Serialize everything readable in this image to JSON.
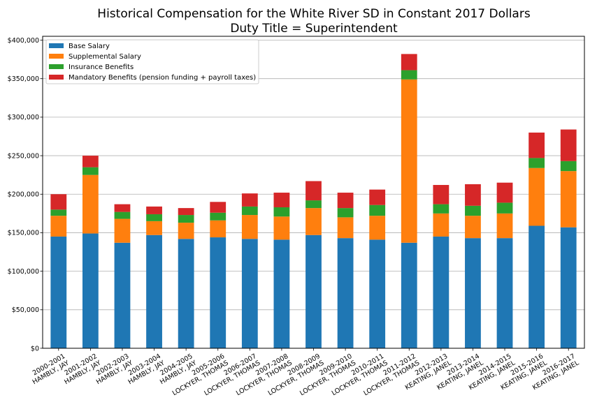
{
  "chart_data": {
    "type": "bar",
    "stacked": true,
    "title": "Historical Compensation for the White River SD in Constant 2017 Dollars",
    "subtitle": "Duty Title = Superintendent",
    "xlabel": "",
    "ylabel": "",
    "ylim": [
      0,
      405000
    ],
    "grid": "y",
    "legend_position": "top-left",
    "y_ticks": [
      {
        "value": 0,
        "label": "$0"
      },
      {
        "value": 50000,
        "label": "$50,000"
      },
      {
        "value": 100000,
        "label": "$100,000"
      },
      {
        "value": 150000,
        "label": "$150,000"
      },
      {
        "value": 200000,
        "label": "$200,000"
      },
      {
        "value": 250000,
        "label": "$250,000"
      },
      {
        "value": 300000,
        "label": "$300,000"
      },
      {
        "value": 350000,
        "label": "$350,000"
      },
      {
        "value": 400000,
        "label": "$400,000"
      }
    ],
    "categories": [
      {
        "year": "2000-2001",
        "name": "HAMBLY, JAY"
      },
      {
        "year": "2001-2002",
        "name": "HAMBLY, JAY"
      },
      {
        "year": "2002-2003",
        "name": "HAMBLY, JAY"
      },
      {
        "year": "2003-2004",
        "name": "HAMBLY, JAY"
      },
      {
        "year": "2004-2005",
        "name": "HAMBLY, JAY"
      },
      {
        "year": "2005-2006",
        "name": "LOCKYER, THOMAS"
      },
      {
        "year": "2006-2007",
        "name": "LOCKYER, THOMAS"
      },
      {
        "year": "2007-2008",
        "name": "LOCKYER, THOMAS"
      },
      {
        "year": "2008-2009",
        "name": "LOCKYER, THOMAS"
      },
      {
        "year": "2009-2010",
        "name": "LOCKYER, THOMAS"
      },
      {
        "year": "2010-2011",
        "name": "LOCKYER, THOMAS"
      },
      {
        "year": "2011-2012",
        "name": "LOCKYER, THOMAS"
      },
      {
        "year": "2012-2013",
        "name": "KEATING, JANEL"
      },
      {
        "year": "2013-2014",
        "name": "KEATING, JANEL"
      },
      {
        "year": "2014-2015",
        "name": "KEATING, JANEL"
      },
      {
        "year": "2015-2016",
        "name": "KEATING, JANEL"
      },
      {
        "year": "2016-2017",
        "name": "KEATING, JANEL"
      }
    ],
    "series": [
      {
        "name": "Base Salary",
        "color": "#1f77b4",
        "values": [
          145000,
          149000,
          137000,
          147000,
          142000,
          144000,
          142000,
          141000,
          147000,
          143000,
          141000,
          137000,
          145000,
          143000,
          143000,
          159000,
          157000
        ]
      },
      {
        "name": "Supplemental Salary",
        "color": "#ff7f0e",
        "values": [
          27000,
          76000,
          31000,
          18000,
          21000,
          22000,
          31000,
          30000,
          35000,
          27000,
          31000,
          212000,
          30000,
          29000,
          32000,
          75000,
          73000
        ]
      },
      {
        "name": "Insurance Benefits",
        "color": "#2ca02c",
        "values": [
          8000,
          10000,
          9000,
          9000,
          10000,
          10000,
          11000,
          12000,
          10000,
          12000,
          14000,
          12000,
          12000,
          13000,
          14000,
          13000,
          13000
        ]
      },
      {
        "name": "Mandatory Benefits (pension funding + payroll taxes)",
        "color": "#d62728",
        "values": [
          20000,
          15000,
          10000,
          10000,
          9000,
          14000,
          17000,
          19000,
          25000,
          20000,
          20000,
          21000,
          25000,
          28000,
          26000,
          33000,
          41000
        ]
      }
    ]
  }
}
